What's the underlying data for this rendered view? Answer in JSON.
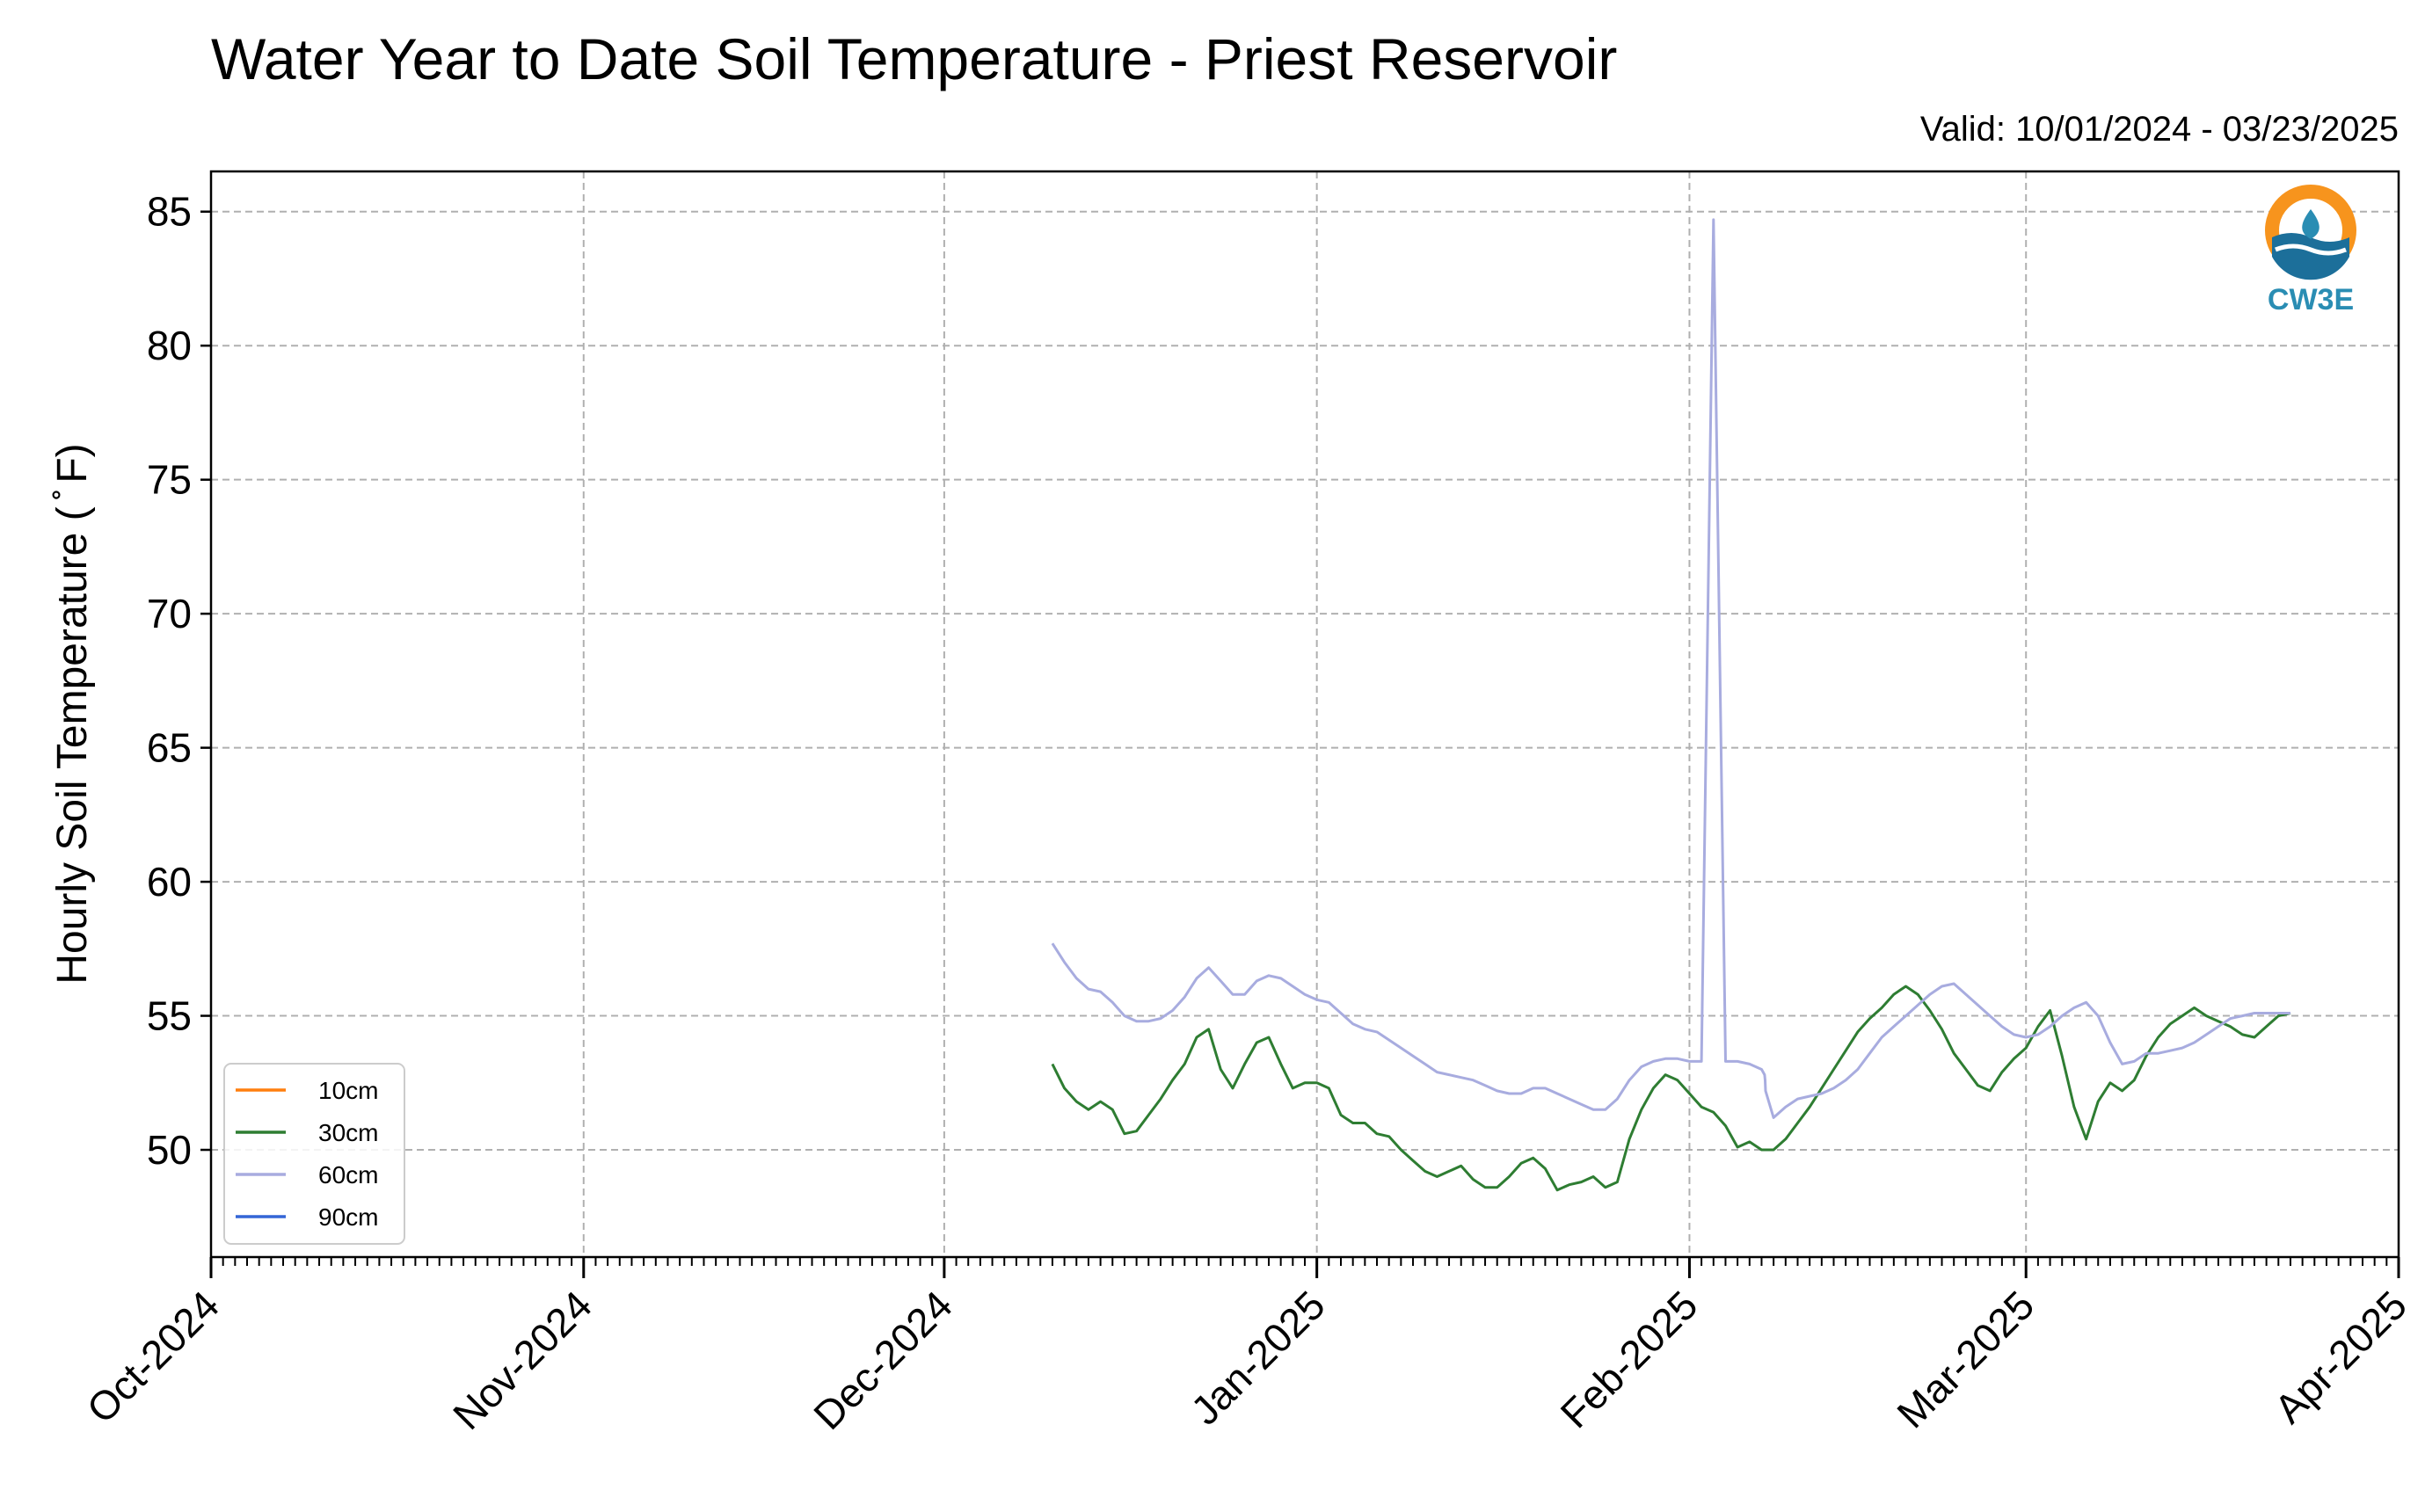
{
  "logo": {
    "text": "CW3E",
    "ring_color": "#f7941d",
    "text_color": "#2a8db3",
    "wave_color": "#1c6f9a"
  },
  "chart_data": {
    "type": "line",
    "title": "Water Year to Date Soil Temperature - Priest Reservoir",
    "subtitle": "Valid: 10/01/2024 - 03/23/2025",
    "xlabel": "",
    "ylabel": "Hourly Soil Temperature ( ̊ F)",
    "xlim": [
      "2024-10-01",
      "2025-04-01"
    ],
    "ylim": [
      46,
      86.5
    ],
    "x_ticks": [
      {
        "date": "2024-10-01",
        "label": "Oct-2024"
      },
      {
        "date": "2024-11-01",
        "label": "Nov-2024"
      },
      {
        "date": "2024-12-01",
        "label": "Dec-2024"
      },
      {
        "date": "2025-01-01",
        "label": "Jan-2025"
      },
      {
        "date": "2025-02-01",
        "label": "Feb-2025"
      },
      {
        "date": "2025-03-01",
        "label": "Mar-2025"
      },
      {
        "date": "2025-04-01",
        "label": "Apr-2025"
      }
    ],
    "y_ticks": [
      50,
      55,
      60,
      65,
      70,
      75,
      80,
      85
    ],
    "grid": true,
    "legend_position": "lower-left",
    "series": [
      {
        "name": "10cm",
        "color": "#ff7f0e",
        "x": [],
        "y": []
      },
      {
        "name": "30cm",
        "color": "#2e7d32",
        "x": [
          "2024-12-10",
          "2024-12-11",
          "2024-12-12",
          "2024-12-13",
          "2024-12-14",
          "2024-12-15",
          "2024-12-16",
          "2024-12-17",
          "2024-12-18",
          "2024-12-19",
          "2024-12-20",
          "2024-12-21",
          "2024-12-22",
          "2024-12-23",
          "2024-12-24",
          "2024-12-25",
          "2024-12-26",
          "2024-12-27",
          "2024-12-28",
          "2024-12-29",
          "2024-12-30",
          "2024-12-31",
          "2025-01-01",
          "2025-01-02",
          "2025-01-03",
          "2025-01-04",
          "2025-01-05",
          "2025-01-06",
          "2025-01-07",
          "2025-01-08",
          "2025-01-09",
          "2025-01-10",
          "2025-01-11",
          "2025-01-12",
          "2025-01-13",
          "2025-01-14",
          "2025-01-15",
          "2025-01-16",
          "2025-01-17",
          "2025-01-18",
          "2025-01-19",
          "2025-01-20",
          "2025-01-21",
          "2025-01-22",
          "2025-01-23",
          "2025-01-24",
          "2025-01-25",
          "2025-01-26",
          "2025-01-27",
          "2025-01-28",
          "2025-01-29",
          "2025-01-30",
          "2025-01-31",
          "2025-02-01",
          "2025-02-02",
          "2025-02-03",
          "2025-02-04",
          "2025-02-05",
          "2025-02-06",
          "2025-02-07",
          "2025-02-08",
          "2025-02-09",
          "2025-02-10",
          "2025-02-11",
          "2025-02-12",
          "2025-02-13",
          "2025-02-14",
          "2025-02-15",
          "2025-02-16",
          "2025-02-17",
          "2025-02-18",
          "2025-02-19",
          "2025-02-20",
          "2025-02-21",
          "2025-02-22",
          "2025-02-23",
          "2025-02-24",
          "2025-02-25",
          "2025-02-26",
          "2025-02-27",
          "2025-02-28",
          "2025-03-01",
          "2025-03-02",
          "2025-03-03",
          "2025-03-04",
          "2025-03-05",
          "2025-03-06",
          "2025-03-07",
          "2025-03-08",
          "2025-03-09",
          "2025-03-10",
          "2025-03-11",
          "2025-03-12",
          "2025-03-13",
          "2025-03-14",
          "2025-03-15",
          "2025-03-16",
          "2025-03-17",
          "2025-03-18",
          "2025-03-19",
          "2025-03-20",
          "2025-03-21",
          "2025-03-22",
          "2025-03-23"
        ],
        "y": [
          53.2,
          52.3,
          51.8,
          51.5,
          51.8,
          51.5,
          50.6,
          50.7,
          51.3,
          51.9,
          52.6,
          53.2,
          54.2,
          54.5,
          53.0,
          52.3,
          53.2,
          54.0,
          54.2,
          53.2,
          52.3,
          52.5,
          52.5,
          52.3,
          51.3,
          51.0,
          51.0,
          50.6,
          50.5,
          50.0,
          49.6,
          49.2,
          49.0,
          49.2,
          49.4,
          48.9,
          48.6,
          48.6,
          49.0,
          49.5,
          49.7,
          49.3,
          48.5,
          48.7,
          48.8,
          49.0,
          48.6,
          48.8,
          50.4,
          51.5,
          52.3,
          52.8,
          52.6,
          52.1,
          51.6,
          51.4,
          50.9,
          50.1,
          50.3,
          50.0,
          50.0,
          50.4,
          51.0,
          51.6,
          52.3,
          53.0,
          53.7,
          54.4,
          54.9,
          55.3,
          55.8,
          56.1,
          55.8,
          55.2,
          54.5,
          53.6,
          53.0,
          52.4,
          52.2,
          52.9,
          53.4,
          53.8,
          54.6,
          55.2,
          53.5,
          51.6,
          50.4,
          51.8,
          52.5,
          52.2,
          52.6,
          53.5,
          54.2,
          54.7,
          55.0,
          55.3,
          55.0,
          54.8,
          54.6,
          54.3,
          54.2,
          54.6,
          55.0,
          55.1
        ]
      },
      {
        "name": "60cm",
        "color": "#a8acdf",
        "x": [
          "2024-12-10",
          "2024-12-11",
          "2024-12-12",
          "2024-12-13",
          "2024-12-14",
          "2024-12-15",
          "2024-12-16",
          "2024-12-17",
          "2024-12-18",
          "2024-12-19",
          "2024-12-20",
          "2024-12-21",
          "2024-12-22",
          "2024-12-23",
          "2024-12-24",
          "2024-12-25",
          "2024-12-26",
          "2024-12-27",
          "2024-12-28",
          "2024-12-29",
          "2024-12-30",
          "2024-12-31",
          "2025-01-01",
          "2025-01-02",
          "2025-01-03",
          "2025-01-04",
          "2025-01-05",
          "2025-01-06",
          "2025-01-07",
          "2025-01-08",
          "2025-01-09",
          "2025-01-10",
          "2025-01-11",
          "2025-01-12",
          "2025-01-13",
          "2025-01-14",
          "2025-01-15",
          "2025-01-16",
          "2025-01-17",
          "2025-01-18",
          "2025-01-19",
          "2025-01-20",
          "2025-01-21",
          "2025-01-22",
          "2025-01-23",
          "2025-01-24",
          "2025-01-25",
          "2025-01-26",
          "2025-01-27",
          "2025-01-28",
          "2025-01-29",
          "2025-01-30",
          "2025-01-31",
          "2025-02-01",
          "2025-02-02",
          "2025-02-03",
          "2025-02-04",
          "2025-02-05",
          "2025-02-06",
          "2025-02-07",
          "2025-02-07T06",
          "2025-02-07T07",
          "2025-02-07T08",
          "2025-02-08",
          "2025-02-09",
          "2025-02-10",
          "2025-02-11",
          "2025-02-12",
          "2025-02-13",
          "2025-02-14",
          "2025-02-15",
          "2025-02-16",
          "2025-02-17",
          "2025-02-18",
          "2025-02-19",
          "2025-02-20",
          "2025-02-21",
          "2025-02-22",
          "2025-02-23",
          "2025-02-24",
          "2025-02-25",
          "2025-02-26",
          "2025-02-27",
          "2025-02-28",
          "2025-03-01",
          "2025-03-02",
          "2025-03-03",
          "2025-03-04",
          "2025-03-05",
          "2025-03-06",
          "2025-03-07",
          "2025-03-08",
          "2025-03-09",
          "2025-03-10",
          "2025-03-11",
          "2025-03-12",
          "2025-03-13",
          "2025-03-14",
          "2025-03-15",
          "2025-03-16",
          "2025-03-17",
          "2025-03-18",
          "2025-03-19",
          "2025-03-20",
          "2025-03-21",
          "2025-03-22",
          "2025-03-23"
        ],
        "y": [
          57.7,
          57.0,
          56.4,
          56.0,
          55.9,
          55.5,
          55.0,
          54.8,
          54.8,
          54.9,
          55.2,
          55.7,
          56.4,
          56.8,
          56.3,
          55.8,
          55.8,
          56.3,
          56.5,
          56.4,
          56.1,
          55.8,
          55.6,
          55.5,
          55.1,
          54.7,
          54.5,
          54.4,
          54.1,
          53.8,
          53.5,
          53.2,
          52.9,
          52.8,
          52.7,
          52.6,
          52.4,
          52.2,
          52.1,
          52.1,
          52.3,
          52.3,
          52.1,
          51.9,
          51.7,
          51.5,
          51.5,
          51.9,
          52.6,
          53.1,
          53.3,
          53.4,
          53.4,
          53.3,
          53.3,
          84.7,
          53.3,
          53.3,
          53.2,
          53.0,
          52.8,
          52.6,
          52.2,
          51.2,
          51.6,
          51.9,
          52.0,
          52.1,
          52.3,
          52.6,
          53.0,
          53.6,
          54.2,
          54.6,
          55.0,
          55.4,
          55.8,
          56.1,
          56.2,
          55.8,
          55.4,
          55.0,
          54.6,
          54.3,
          54.2,
          54.3,
          54.6,
          55.0,
          55.3,
          55.5,
          55.0,
          54.0,
          53.2,
          53.3,
          53.6,
          53.6,
          53.7,
          53.8,
          54.0,
          54.3,
          54.6,
          54.9,
          55.0,
          55.1,
          55.1,
          55.1,
          55.1
        ]
      },
      {
        "name": "90cm",
        "color": "#3465d6",
        "x": [],
        "y": []
      }
    ]
  }
}
